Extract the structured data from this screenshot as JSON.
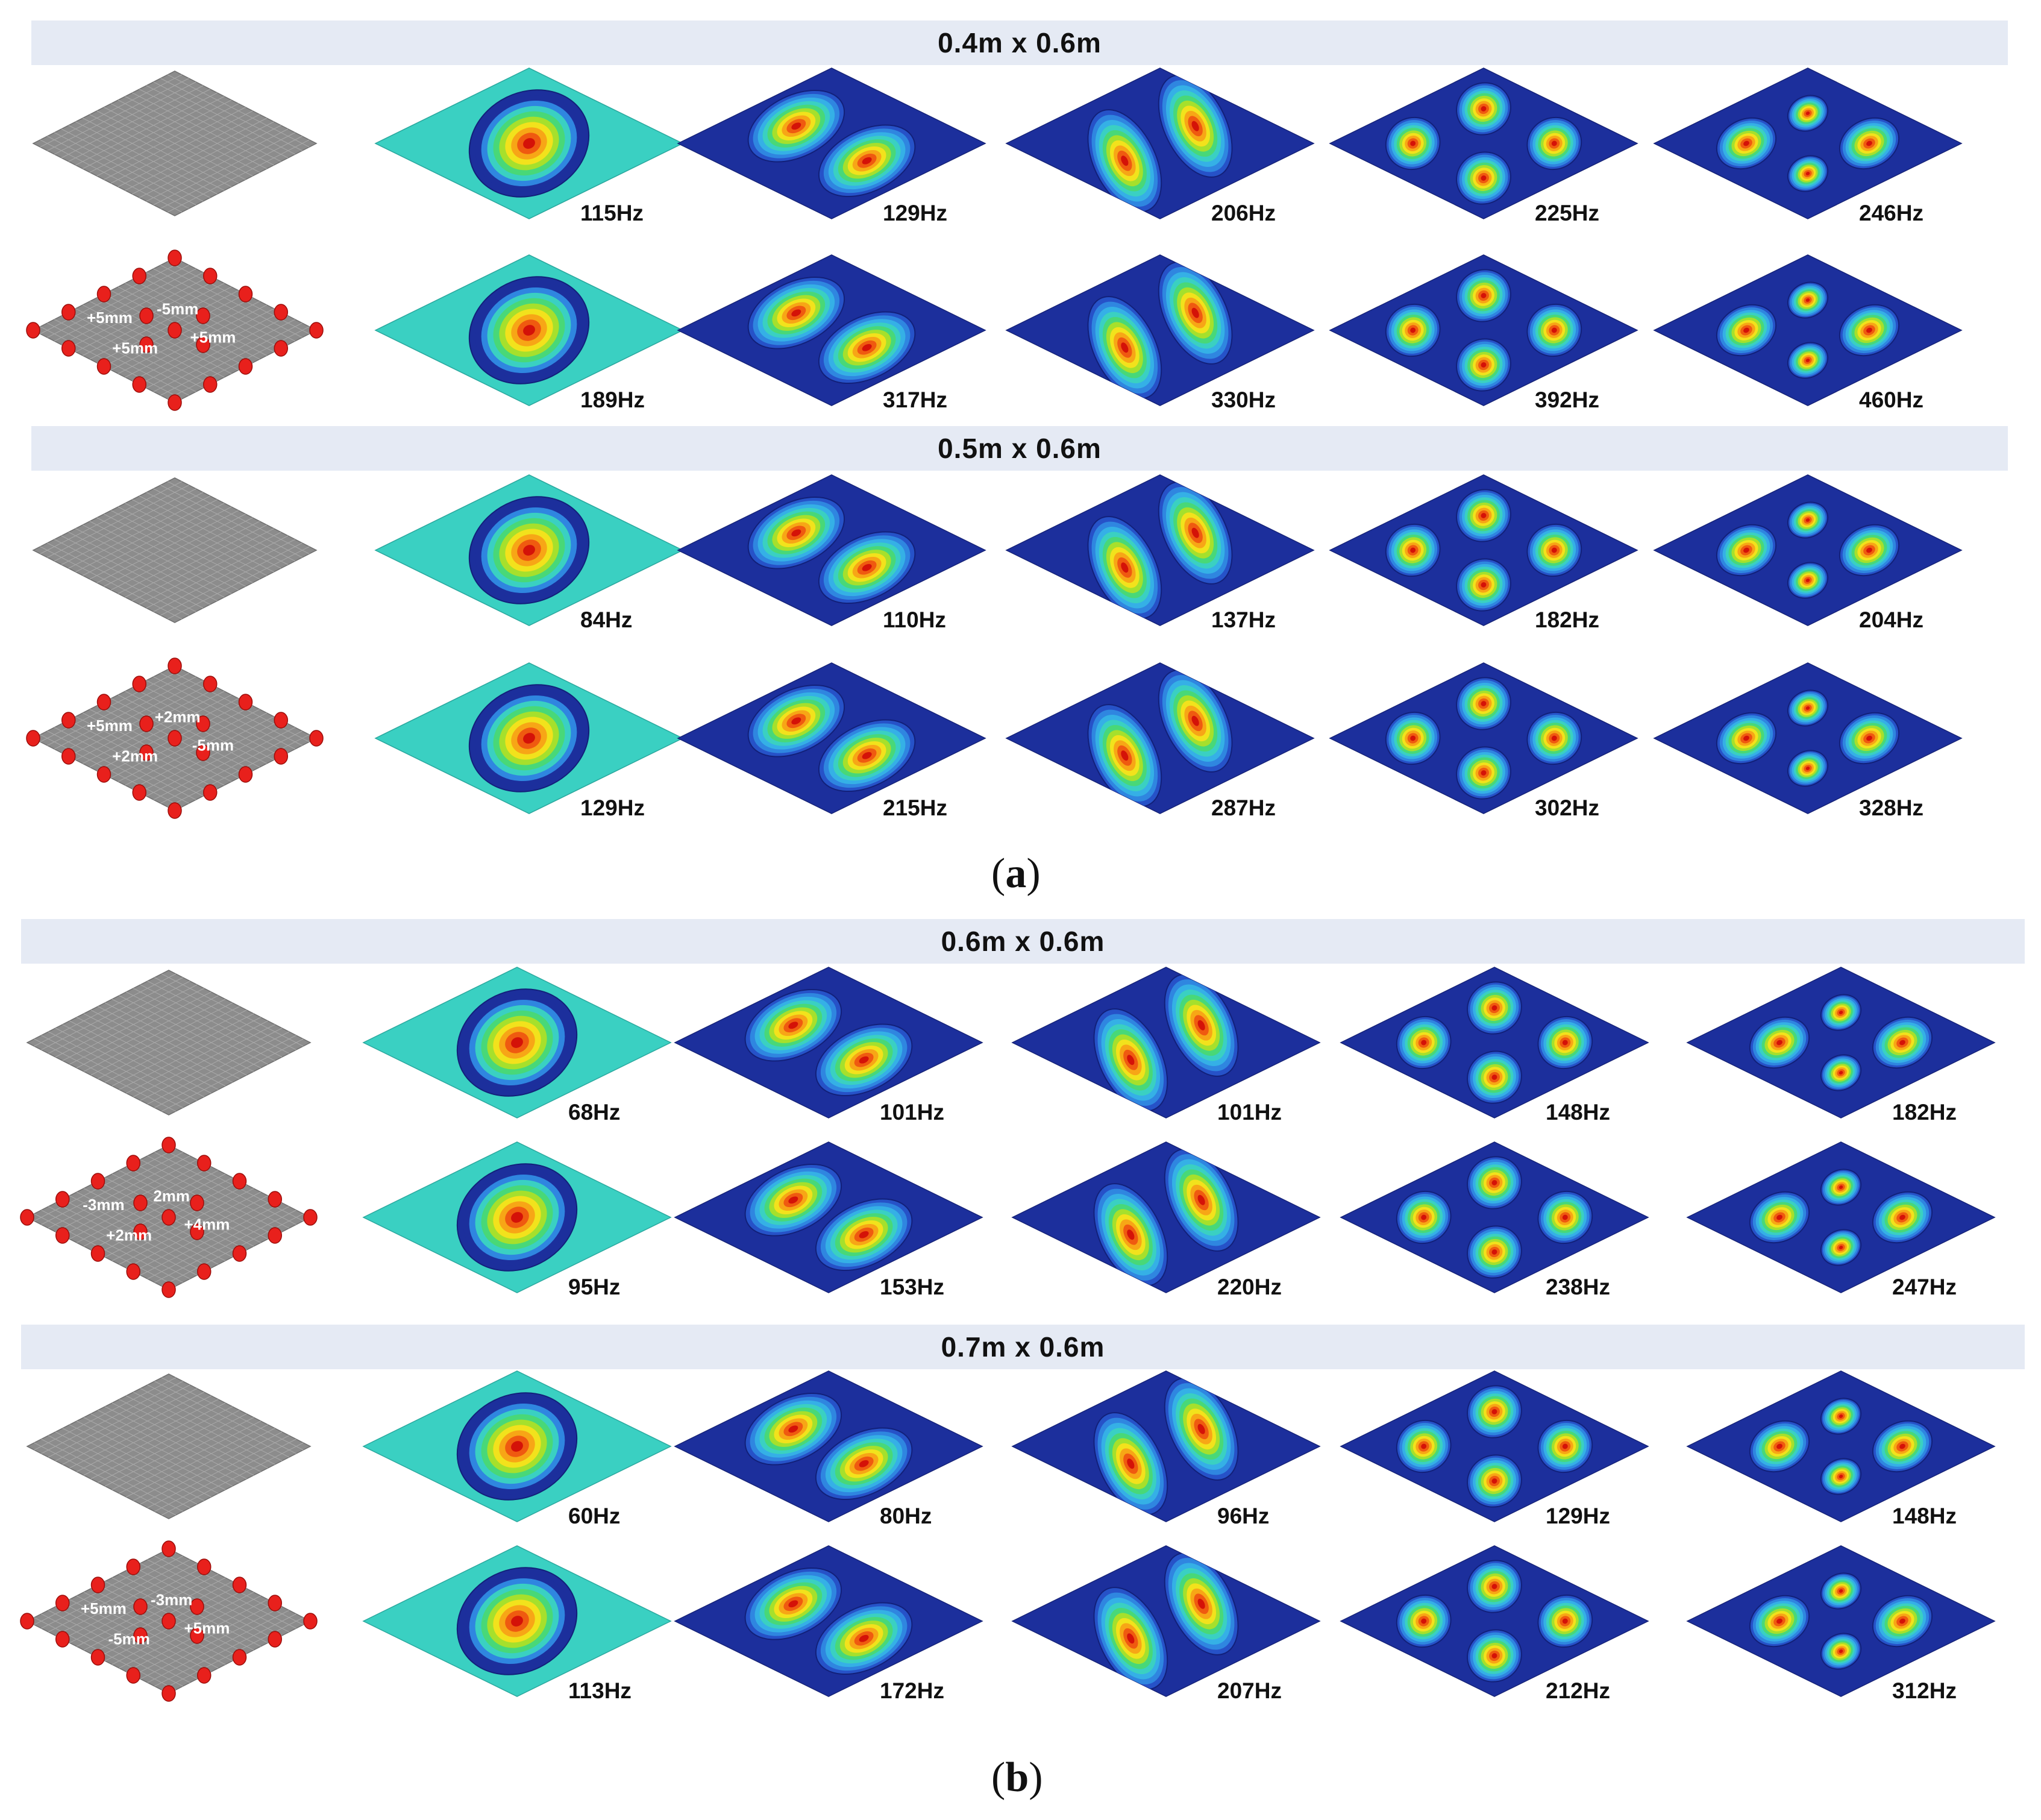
{
  "panels": [
    {
      "label": "a",
      "groups": [
        {
          "title": "0.4m x 0.6m",
          "rows": [
            {
              "kind": "flat",
              "frequencies": [
                "115Hz",
                "129Hz",
                "206Hz",
                "225Hz",
                "246Hz"
              ]
            },
            {
              "kind": "imperfect",
              "imperfections": [
                "+5mm",
                "+5mm",
                "-5mm",
                "+5mm"
              ],
              "frequencies": [
                "189Hz",
                "317Hz",
                "330Hz",
                "392Hz",
                "460Hz"
              ]
            }
          ]
        },
        {
          "title": "0.5m x 0.6m",
          "rows": [
            {
              "kind": "flat",
              "frequencies": [
                "84Hz",
                "110Hz",
                "137Hz",
                "182Hz",
                "204Hz"
              ]
            },
            {
              "kind": "imperfect",
              "imperfections": [
                "+5mm",
                "+2mm",
                "+2mm",
                "-5mm"
              ],
              "frequencies": [
                "129Hz",
                "215Hz",
                "287Hz",
                "302Hz",
                "328Hz"
              ]
            }
          ]
        }
      ]
    },
    {
      "label": "b",
      "groups": [
        {
          "title": "0.6m x 0.6m",
          "rows": [
            {
              "kind": "flat",
              "frequencies": [
                "68Hz",
                "101Hz",
                "101Hz",
                "148Hz",
                "182Hz"
              ]
            },
            {
              "kind": "imperfect",
              "imperfections": [
                "-3mm",
                "+2mm",
                "2mm",
                "+4mm"
              ],
              "frequencies": [
                "95Hz",
                "153Hz",
                "220Hz",
                "238Hz",
                "247Hz"
              ]
            }
          ]
        },
        {
          "title": "0.7m x 0.6m",
          "rows": [
            {
              "kind": "flat",
              "frequencies": [
                "60Hz",
                "80Hz",
                "96Hz",
                "129Hz",
                "148Hz"
              ]
            },
            {
              "kind": "imperfect",
              "imperfections": [
                "+5mm",
                "-5mm",
                "-3mm",
                "+5mm"
              ],
              "frequencies": [
                "113Hz",
                "172Hz",
                "207Hz",
                "212Hz",
                "312Hz"
              ]
            }
          ]
        }
      ]
    }
  ],
  "colors": {
    "banner": "#e5eaf4",
    "mesh": "#8c8c8c",
    "support_points": "#e8201c",
    "contour_scale": [
      "#1c2f9c",
      "#2652c8",
      "#2f86e0",
      "#35b0e6",
      "#3ad0c2",
      "#48d878",
      "#a6e02c",
      "#f2e21c",
      "#f7a616",
      "#ef5a10",
      "#d41208"
    ]
  }
}
